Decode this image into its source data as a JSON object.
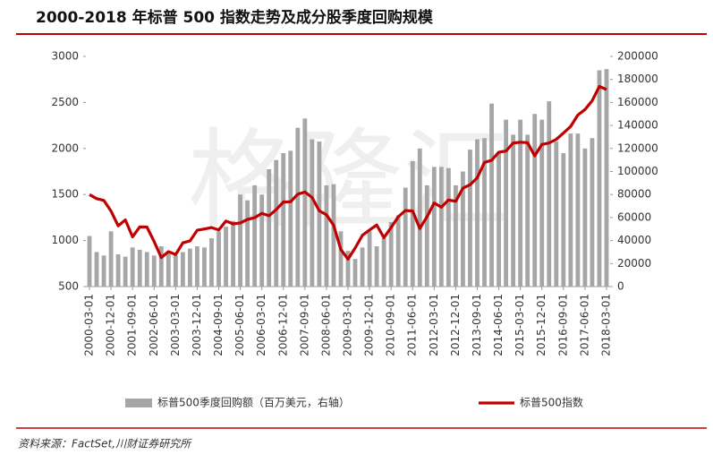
{
  "chart_data": {
    "type": "combo",
    "title": "2000-2018 年标普 500 指数走势及成分股季度回购规模",
    "source": "资料来源：FactSet,川财证券研究所",
    "watermark": "格隆汇",
    "categories": [
      "2000-03-01",
      null,
      null,
      "2000-12-01",
      null,
      null,
      "2001-09-01",
      null,
      null,
      "2002-06-01",
      null,
      null,
      "2003-03-01",
      null,
      null,
      "2003-12-01",
      null,
      null,
      "2004-09-01",
      null,
      null,
      "2005-06-01",
      null,
      null,
      "2006-03-01",
      null,
      null,
      "2006-12-01",
      null,
      null,
      "2007-09-01",
      null,
      null,
      "2008-06-01",
      null,
      null,
      "2009-03-01",
      null,
      null,
      "2009-12-01",
      null,
      null,
      "2010-09-01",
      null,
      null,
      "2011-06-01",
      null,
      null,
      "2012-03-01",
      null,
      null,
      "2012-12-01",
      null,
      null,
      "2013-09-01",
      null,
      null,
      "2014-06-01",
      null,
      null,
      "2015-03-01",
      null,
      null,
      "2015-12-01",
      null,
      null,
      "2016-09-01",
      null,
      null,
      "2017-06-01",
      null,
      null,
      "2018-03-01"
    ],
    "series": [
      {
        "name": "标普500季度回购额（百万美元，右轴）",
        "type": "bar",
        "axis": "y2",
        "color": "#a6a6a6",
        "values": [
          44000,
          30000,
          27000,
          48000,
          28000,
          26000,
          34000,
          32000,
          30000,
          27000,
          35000,
          30000,
          27000,
          30000,
          33000,
          35000,
          34000,
          42000,
          48000,
          52000,
          57000,
          80000,
          75000,
          88000,
          80000,
          102000,
          110000,
          116000,
          118000,
          138000,
          146000,
          128000,
          126000,
          88000,
          89000,
          48000,
          31000,
          24000,
          34000,
          48000,
          35000,
          42000,
          56000,
          62000,
          86000,
          109000,
          120000,
          88000,
          104000,
          104000,
          103000,
          88000,
          100000,
          119000,
          128000,
          129000,
          159000,
          117000,
          145000,
          132000,
          145000,
          132000,
          150000,
          145000,
          161000,
          126000,
          116000,
          133000,
          133000,
          120000,
          129000,
          188000,
          189000
        ]
      },
      {
        "name": "标普500指数",
        "type": "line",
        "color": "#c00000",
        "values": [
          1499,
          1455,
          1436,
          1320,
          1160,
          1224,
          1040,
          1148,
          1147,
          990,
          815,
          880,
          848,
          975,
          996,
          1112,
          1126,
          1141,
          1115,
          1212,
          1181,
          1191,
          1229,
          1248,
          1295,
          1270,
          1336,
          1418,
          1421,
          1503,
          1527,
          1468,
          1323,
          1280,
          1166,
          903,
          798,
          919,
          1057,
          1115,
          1169,
          1031,
          1141,
          1258,
          1326,
          1321,
          1131,
          1258,
          1408,
          1362,
          1441,
          1426,
          1569,
          1606,
          1682,
          1848,
          1872,
          1960,
          1972,
          2059,
          2068,
          2063,
          1920,
          2044,
          2060,
          2099,
          2168,
          2239,
          2363,
          2423,
          2519,
          2674,
          2640
        ]
      }
    ],
    "ylim": [
      500,
      3000
    ],
    "yticks": [
      500,
      1000,
      1500,
      2000,
      2500,
      3000
    ],
    "y2lim": [
      0,
      200000
    ],
    "y2ticks": [
      0,
      20000,
      40000,
      60000,
      80000,
      100000,
      120000,
      140000,
      160000,
      180000,
      200000
    ]
  }
}
